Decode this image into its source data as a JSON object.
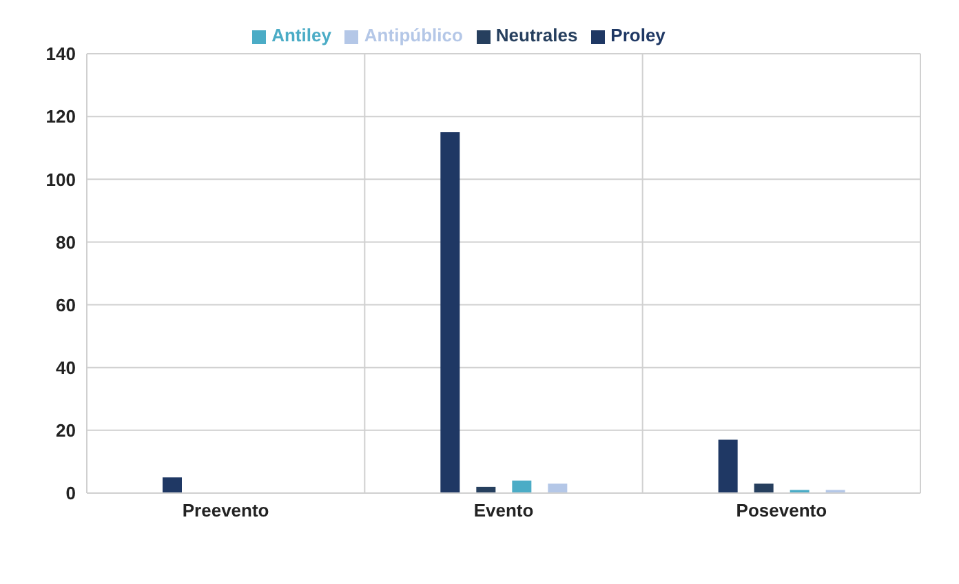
{
  "chart_data": {
    "type": "bar",
    "categories": [
      "Preevento",
      "Evento",
      "Posevento"
    ],
    "series": [
      {
        "name": "Proley",
        "color": "#1f3864",
        "values": [
          5,
          115,
          17
        ]
      },
      {
        "name": "Neutrales",
        "color": "#263f5e",
        "values": [
          0,
          2,
          3
        ]
      },
      {
        "name": "Antiley",
        "color": "#4bacc6",
        "values": [
          0,
          4,
          1
        ]
      },
      {
        "name": "Antipúblico",
        "color": "#b4c7e7",
        "values": [
          0,
          3,
          1
        ]
      }
    ],
    "ylim": [
      0,
      140
    ],
    "yticks": [
      0,
      20,
      40,
      60,
      80,
      100,
      120,
      140
    ],
    "grid": true,
    "legend": "top"
  }
}
